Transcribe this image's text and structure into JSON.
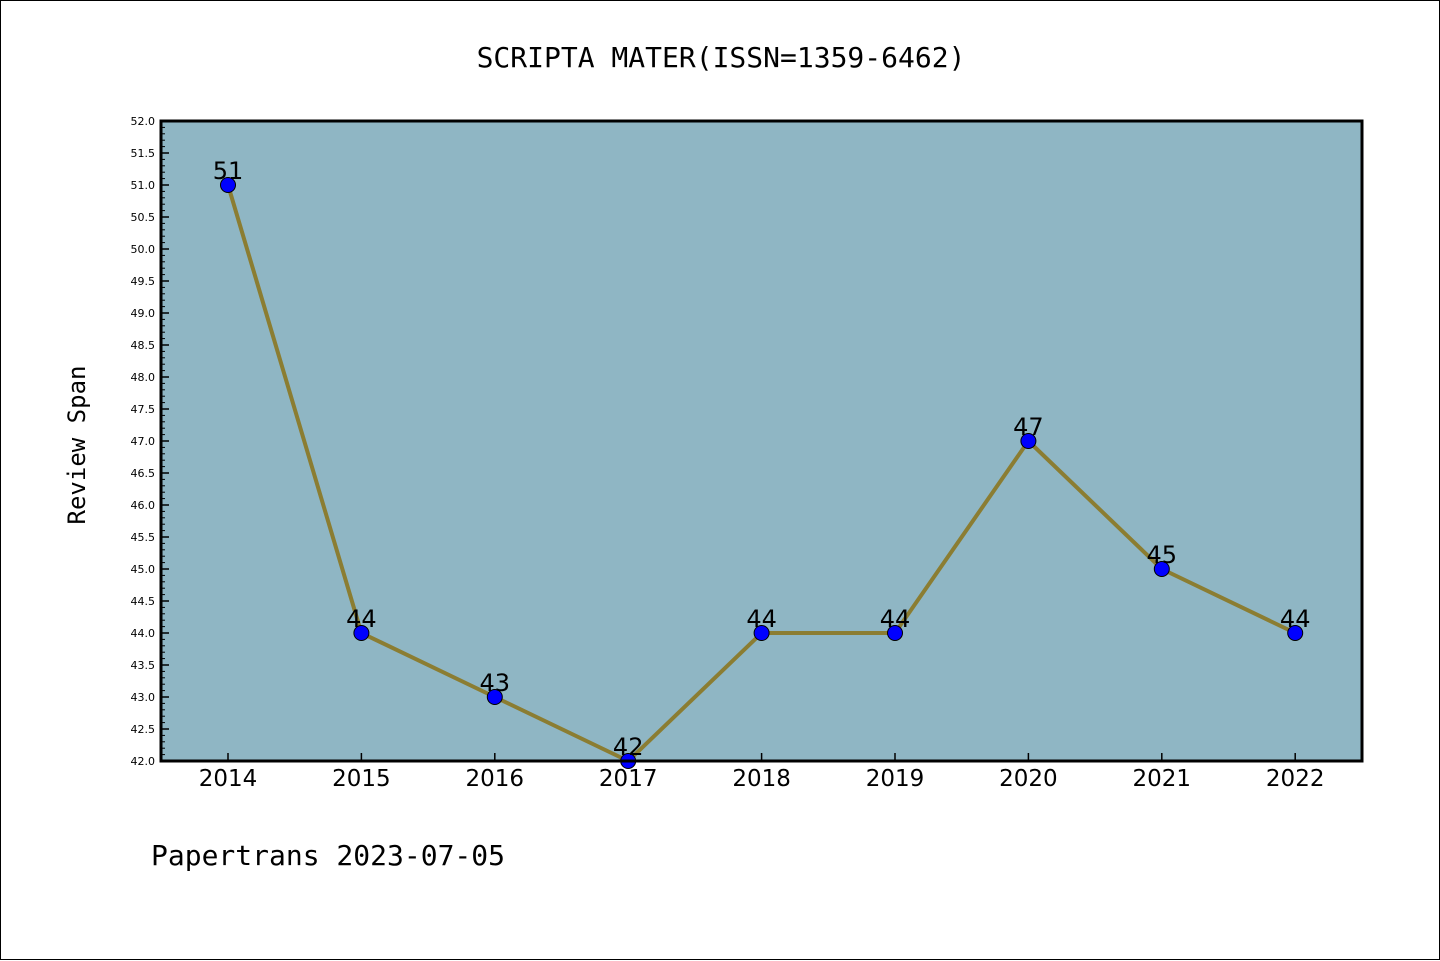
{
  "chart_data": {
    "type": "line",
    "title": "SCRIPTA MATER(ISSN=1359-6462)",
    "xlabel": "",
    "ylabel": "Review Span",
    "categories": [
      "2014",
      "2015",
      "2016",
      "2017",
      "2018",
      "2019",
      "2020",
      "2021",
      "2022"
    ],
    "series": [
      {
        "values": [
          51,
          44,
          43,
          42,
          44,
          44,
          47,
          45,
          44
        ]
      }
    ],
    "ylim": [
      42.0,
      52.0
    ],
    "ytick_step": 0.5,
    "grid": false,
    "background_color": "#8fb6c4",
    "line_color": "#8b7d32",
    "marker_color": "#0000ff"
  },
  "footer": "Papertrans 2023-07-05"
}
